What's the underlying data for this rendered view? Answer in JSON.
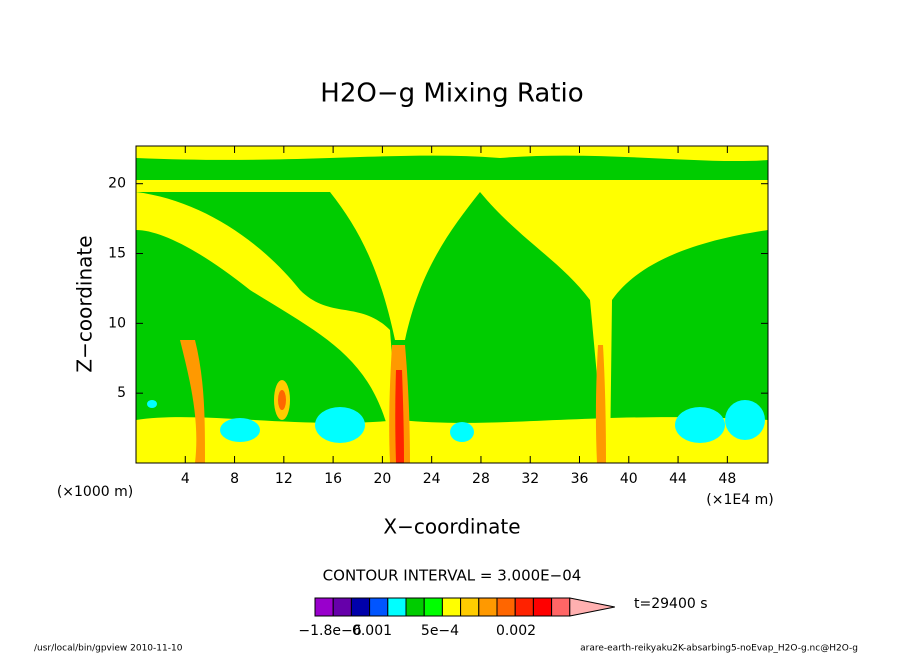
{
  "chart_data": {
    "type": "contour",
    "title": "H2O−g Mixing Ratio",
    "x_label": "X−coordinate",
    "y_label": "Z−coordinate",
    "x_unit": "(×1000 m)",
    "x_unit2": "(×1E4 m)",
    "xlim": [
      0,
      51.3
    ],
    "xticks": [
      4,
      8,
      12,
      16,
      20,
      24,
      28,
      32,
      36,
      40,
      44,
      48
    ],
    "ylim": [
      0,
      22.7
    ],
    "yticks": [
      5,
      10,
      15,
      20
    ],
    "contour_interval": "CONTOUR INTERVAL = 3.000E−04",
    "time_label": "t=29400 s",
    "colorbar_colors": [
      "#9900cc",
      "#6600aa",
      "#0000aa",
      "#0055ff",
      "#00ffff",
      "#00cc00",
      "#00ff00",
      "#ffff00",
      "#ffcc00",
      "#ff9900",
      "#ff6600",
      "#ff2200",
      "#ff0000",
      "#ff6666",
      "#ffb0b0"
    ],
    "colorbar_labels": [
      "−1.8e−6",
      "0.001",
      "5e−4",
      "0.002"
    ],
    "footer_left": "/usr/local/bin/gpview  2010-11-10",
    "footer_right": "arare-earth-reikyaku2K-absarbing5-noEvap_H2O-g.nc@H2O-g"
  }
}
